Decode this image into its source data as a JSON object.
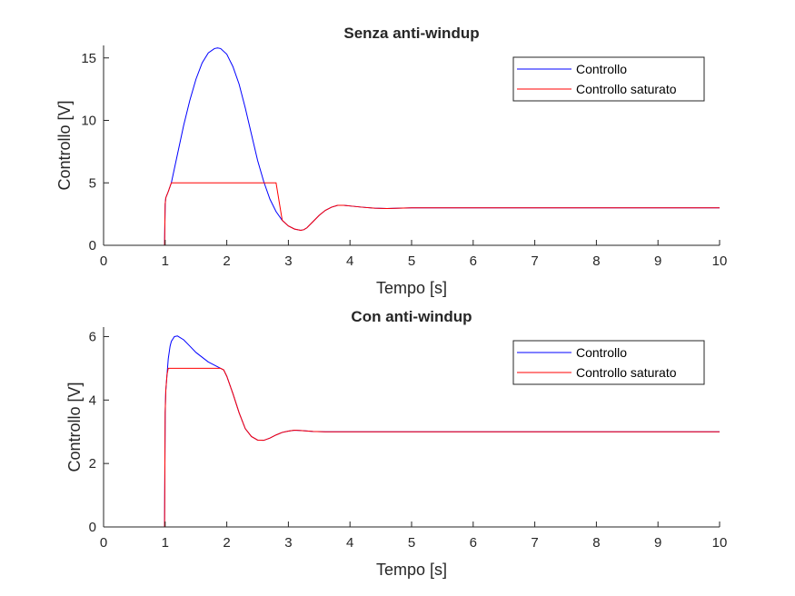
{
  "chart_data": [
    {
      "type": "line",
      "title": "Senza anti-windup",
      "xlabel": "Tempo [s]",
      "ylabel": "Controllo [V]",
      "xlim": [
        0,
        10
      ],
      "ylim": [
        0,
        16
      ],
      "xticks": [
        0,
        1,
        2,
        3,
        4,
        5,
        6,
        7,
        8,
        9,
        10
      ],
      "yticks": [
        0,
        5,
        10,
        15
      ],
      "legend": {
        "position": "top-right"
      },
      "grid": false,
      "series": [
        {
          "name": "Controllo",
          "color": "#0000ff",
          "x": [
            0,
            0.99,
            1.0,
            1.01,
            1.05,
            1.1,
            1.2,
            1.3,
            1.4,
            1.5,
            1.6,
            1.7,
            1.8,
            1.85,
            1.9,
            2.0,
            2.1,
            2.2,
            2.3,
            2.4,
            2.5,
            2.6,
            2.7,
            2.8,
            2.9,
            3.0,
            3.1,
            3.2,
            3.25,
            3.3,
            3.4,
            3.5,
            3.6,
            3.7,
            3.8,
            3.9,
            4.0,
            4.2,
            4.4,
            4.6,
            4.8,
            5.0,
            5.5,
            6,
            7,
            8,
            9,
            10
          ],
          "y": [
            0,
            0,
            3.3,
            3.8,
            4.3,
            5.0,
            7.3,
            9.6,
            11.6,
            13.3,
            14.6,
            15.4,
            15.75,
            15.8,
            15.75,
            15.3,
            14.3,
            12.9,
            11.0,
            8.9,
            6.8,
            5.1,
            3.7,
            2.7,
            2.0,
            1.55,
            1.3,
            1.2,
            1.25,
            1.4,
            1.9,
            2.4,
            2.8,
            3.05,
            3.2,
            3.2,
            3.15,
            3.05,
            2.97,
            2.95,
            2.97,
            3.0,
            3.0,
            3.0,
            3.0,
            3.0,
            3.0,
            3.0
          ]
        },
        {
          "name": "Controllo saturato",
          "color": "#ff0000",
          "x": [
            0,
            0.99,
            1.0,
            1.01,
            1.05,
            1.1,
            1.2,
            1.5,
            2.0,
            2.5,
            2.7,
            2.8,
            2.9,
            3.0,
            3.1,
            3.2,
            3.25,
            3.3,
            3.4,
            3.5,
            3.6,
            3.7,
            3.8,
            3.9,
            4.0,
            4.2,
            4.4,
            4.6,
            4.8,
            5.0,
            5.5,
            6,
            7,
            8,
            9,
            10
          ],
          "y": [
            0,
            0,
            3.3,
            3.8,
            4.3,
            5.0,
            5.0,
            5.0,
            5.0,
            5.0,
            5.0,
            5.0,
            2.0,
            1.55,
            1.3,
            1.2,
            1.25,
            1.4,
            1.9,
            2.4,
            2.8,
            3.05,
            3.2,
            3.2,
            3.15,
            3.05,
            2.97,
            2.95,
            2.97,
            3.0,
            3.0,
            3.0,
            3.0,
            3.0,
            3.0,
            3.0
          ]
        }
      ]
    },
    {
      "type": "line",
      "title": "Con anti-windup",
      "xlabel": "Tempo [s]",
      "ylabel": "Controllo [V]",
      "xlim": [
        0,
        10
      ],
      "ylim": [
        0,
        6.3
      ],
      "xticks": [
        0,
        1,
        2,
        3,
        4,
        5,
        6,
        7,
        8,
        9,
        10
      ],
      "yticks": [
        0,
        2,
        4,
        6
      ],
      "legend": {
        "position": "top-right"
      },
      "grid": false,
      "series": [
        {
          "name": "Controllo",
          "color": "#0000ff",
          "x": [
            0,
            0.99,
            1.0,
            1.01,
            1.03,
            1.05,
            1.08,
            1.1,
            1.15,
            1.2,
            1.3,
            1.4,
            1.5,
            1.6,
            1.7,
            1.8,
            1.9,
            1.95,
            2.0,
            2.1,
            2.2,
            2.3,
            2.4,
            2.5,
            2.6,
            2.7,
            2.8,
            2.9,
            3.0,
            3.1,
            3.2,
            3.4,
            3.6,
            3.8,
            4.0,
            5,
            6,
            7,
            8,
            9,
            10
          ],
          "y": [
            0,
            0,
            3.6,
            4.3,
            4.8,
            5.3,
            5.7,
            5.85,
            6.0,
            6.02,
            5.9,
            5.7,
            5.5,
            5.35,
            5.2,
            5.1,
            5.0,
            4.95,
            4.75,
            4.2,
            3.6,
            3.1,
            2.85,
            2.74,
            2.73,
            2.8,
            2.9,
            2.98,
            3.02,
            3.05,
            3.04,
            3.01,
            3.0,
            3.0,
            3.0,
            3.0,
            3.0,
            3.0,
            3.0,
            3.0,
            3.0
          ]
        },
        {
          "name": "Controllo saturato",
          "color": "#ff0000",
          "x": [
            0,
            0.99,
            1.0,
            1.01,
            1.03,
            1.05,
            1.08,
            1.1,
            1.5,
            1.9,
            1.95,
            2.0,
            2.1,
            2.2,
            2.3,
            2.4,
            2.5,
            2.6,
            2.7,
            2.8,
            2.9,
            3.0,
            3.1,
            3.2,
            3.4,
            3.6,
            3.8,
            4.0,
            5,
            6,
            7,
            8,
            9,
            10
          ],
          "y": [
            0,
            0,
            3.6,
            4.3,
            4.8,
            5.0,
            5.0,
            5.0,
            5.0,
            5.0,
            4.95,
            4.75,
            4.2,
            3.6,
            3.1,
            2.85,
            2.74,
            2.73,
            2.8,
            2.9,
            2.98,
            3.02,
            3.05,
            3.04,
            3.01,
            3.0,
            3.0,
            3.0,
            3.0,
            3.0,
            3.0,
            3.0,
            3.0,
            3.0
          ]
        }
      ]
    }
  ]
}
